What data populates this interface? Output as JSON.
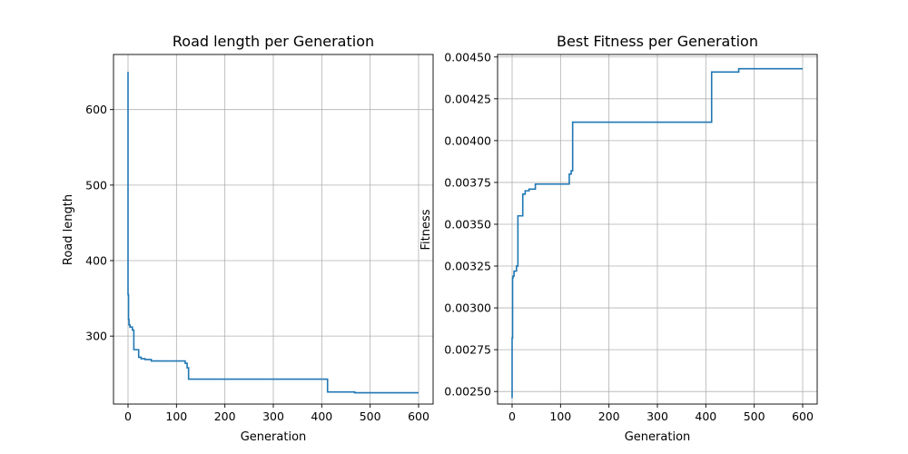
{
  "chart_data": [
    {
      "type": "line",
      "title": "Road length per Generation",
      "xlabel": "Generation",
      "ylabel": "Road length",
      "xlim": [
        -30,
        630
      ],
      "ylim": [
        210,
        673
      ],
      "xticks": [
        0,
        100,
        200,
        300,
        400,
        500,
        600
      ],
      "yticks": [
        300,
        400,
        500,
        600
      ],
      "ytick_labels": [
        "300",
        "400",
        "500",
        "600"
      ],
      "grid": true,
      "color": "#1f77b4",
      "series": [
        {
          "x": [
            0,
            0,
            1,
            1,
            2,
            2,
            4,
            4,
            9,
            9,
            12,
            12,
            22,
            22,
            27,
            27,
            35,
            35,
            48,
            48,
            118,
            118,
            122,
            122,
            125,
            125,
            412,
            412,
            468,
            468,
            600
          ],
          "y": [
            650,
            355,
            355,
            322,
            322,
            315,
            315,
            312,
            312,
            308,
            308,
            282,
            282,
            272,
            272,
            270,
            270,
            269,
            269,
            267,
            267,
            264,
            264,
            258,
            258,
            243,
            243,
            226,
            226,
            225,
            225
          ]
        }
      ]
    },
    {
      "type": "line",
      "title": "Best Fitness per Generation",
      "xlabel": "Generation",
      "ylabel": "Fitness",
      "xlim": [
        -30,
        630
      ],
      "ylim": [
        0.002425,
        0.004515
      ],
      "xticks": [
        0,
        100,
        200,
        300,
        400,
        500,
        600
      ],
      "yticks": [
        0.0025,
        0.00275,
        0.003,
        0.00325,
        0.0035,
        0.00375,
        0.004,
        0.00425,
        0.0045
      ],
      "ytick_labels": [
        "0.00250",
        "0.00275",
        "0.00300",
        "0.00325",
        "0.00350",
        "0.00375",
        "0.00400",
        "0.00425",
        "0.00450"
      ],
      "grid": true,
      "color": "#1f77b4",
      "series": [
        {
          "x": [
            0,
            0,
            1,
            1,
            2,
            2,
            4,
            4,
            9,
            9,
            12,
            12,
            22,
            22,
            27,
            27,
            35,
            35,
            48,
            48,
            118,
            118,
            122,
            122,
            125,
            125,
            412,
            412,
            468,
            468,
            600
          ],
          "y": [
            0.00246,
            0.00282,
            0.00282,
            0.00318,
            0.00318,
            0.00319,
            0.00319,
            0.00322,
            0.00322,
            0.00325,
            0.00325,
            0.00355,
            0.00355,
            0.00368,
            0.00368,
            0.0037,
            0.0037,
            0.00371,
            0.00371,
            0.00374,
            0.00374,
            0.0038,
            0.0038,
            0.00382,
            0.00382,
            0.00411,
            0.00411,
            0.00441,
            0.00441,
            0.00443,
            0.00443
          ]
        }
      ]
    }
  ]
}
